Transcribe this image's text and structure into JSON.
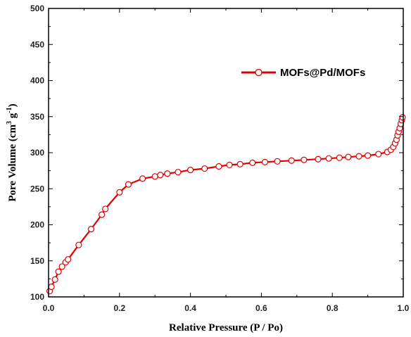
{
  "chart_data": {
    "type": "line",
    "xlabel": "Relative Pressure (P / Po)",
    "ylabel_main": "Pore Volume (cm",
    "ylabel_sup1": "3",
    "ylabel_mid": " g",
    "ylabel_sup2": "-1",
    "ylabel_end": ")",
    "xlim": [
      0.0,
      1.0
    ],
    "ylim": [
      100,
      500
    ],
    "xticks": [
      "0.0",
      "0.2",
      "0.4",
      "0.6",
      "0.8",
      "1.0"
    ],
    "yticks": [
      "100",
      "150",
      "200",
      "250",
      "300",
      "350",
      "400",
      "450",
      "500"
    ],
    "legend_position": "top-right",
    "series": [
      {
        "name": "MOFs@Pd/MOFs",
        "color": "#e00000",
        "marker": "open-circle",
        "x": [
          0.003,
          0.008,
          0.018,
          0.028,
          0.038,
          0.048,
          0.055,
          0.085,
          0.12,
          0.15,
          0.16,
          0.2,
          0.225,
          0.265,
          0.3,
          0.315,
          0.335,
          0.365,
          0.4,
          0.44,
          0.48,
          0.51,
          0.54,
          0.575,
          0.61,
          0.645,
          0.685,
          0.72,
          0.76,
          0.79,
          0.82,
          0.845,
          0.875,
          0.9,
          0.93,
          0.955,
          0.965,
          0.972,
          0.977,
          0.981,
          0.984,
          0.987,
          0.99,
          0.993,
          0.996,
          0.998
        ],
        "y": [
          108,
          114,
          124,
          135,
          142,
          148,
          152,
          172,
          194,
          214,
          222,
          245,
          256,
          264,
          267,
          269,
          271,
          273,
          276,
          278,
          281,
          283,
          284,
          286,
          287,
          288,
          289,
          290,
          291,
          292,
          293,
          294,
          295,
          296,
          298,
          301,
          304,
          308,
          313,
          318,
          324,
          329,
          334,
          340,
          345,
          349
        ]
      }
    ]
  }
}
